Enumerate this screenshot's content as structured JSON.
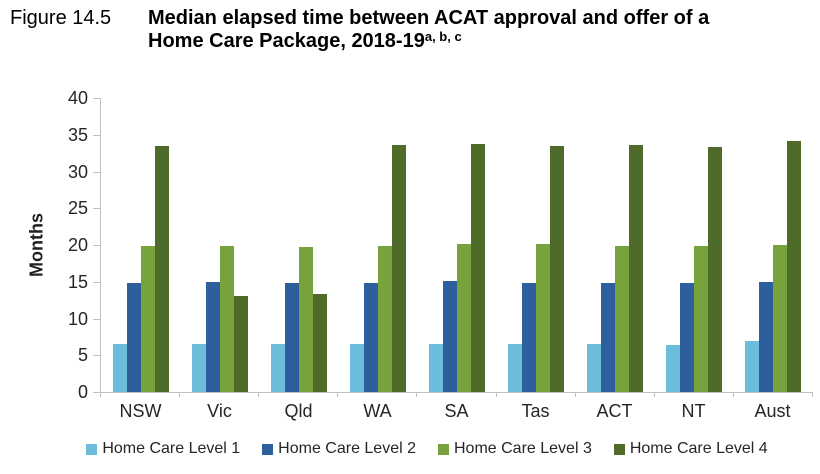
{
  "figure": {
    "label": "Figure 14.5",
    "title_line1": "Median elapsed time between ACAT approval and offer of a",
    "title_line2": "Home Care Package, 2018-19",
    "title_superscript": "a, b, c"
  },
  "chart_data": {
    "type": "bar",
    "title": "Median elapsed time between ACAT approval and offer of a Home Care Package, 2018-19",
    "xlabel": "",
    "ylabel": "Months",
    "ylim": [
      0,
      40
    ],
    "yticks": [
      0,
      5,
      10,
      15,
      20,
      25,
      30,
      35,
      40
    ],
    "grid": false,
    "legend_position": "bottom",
    "categories": [
      "NSW",
      "Vic",
      "Qld",
      "WA",
      "SA",
      "Tas",
      "ACT",
      "NT",
      "Aust"
    ],
    "series": [
      {
        "name": "Home Care Level 1",
        "color": "#6cbddc",
        "values": [
          6.5,
          6.5,
          6.5,
          6.5,
          6.6,
          6.6,
          6.6,
          6.4,
          7.0
        ]
      },
      {
        "name": "Home Care Level 2",
        "color": "#2c5f9c",
        "values": [
          14.9,
          15.0,
          14.8,
          14.9,
          15.1,
          14.9,
          14.9,
          14.9,
          15.0
        ]
      },
      {
        "name": "Home Care Level 3",
        "color": "#77a23c",
        "values": [
          19.8,
          19.8,
          19.7,
          19.9,
          20.2,
          20.2,
          19.9,
          19.8,
          20.0
        ]
      },
      {
        "name": "Home Care Level 4",
        "color": "#4e6b29",
        "values": [
          33.5,
          13.1,
          13.4,
          33.6,
          33.7,
          33.5,
          33.6,
          33.4,
          34.1
        ]
      }
    ]
  }
}
